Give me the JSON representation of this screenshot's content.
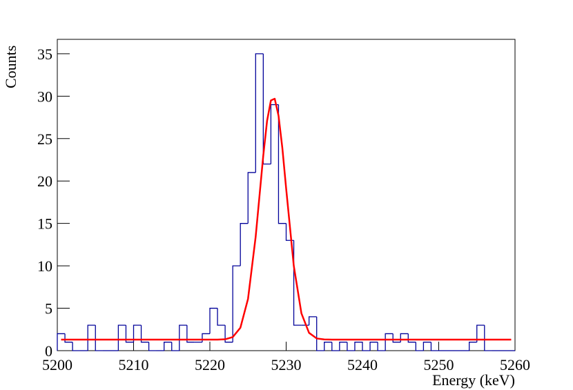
{
  "chart_data": {
    "type": "histogram",
    "xlabel": "Energy (keV)",
    "ylabel": "Counts",
    "bins": [
      5200,
      5201,
      5202,
      5203,
      5204,
      5205,
      5206,
      5207,
      5208,
      5209,
      5210,
      5211,
      5212,
      5213,
      5214,
      5215,
      5216,
      5217,
      5218,
      5219,
      5220,
      5221,
      5222,
      5223,
      5224,
      5225,
      5226,
      5227,
      5228,
      5229,
      5230,
      5231,
      5232,
      5233,
      5234,
      5235,
      5236,
      5237,
      5238,
      5239,
      5240,
      5241,
      5242,
      5243,
      5244,
      5245,
      5246,
      5247,
      5248,
      5249,
      5250,
      5251,
      5252,
      5253,
      5254,
      5255,
      5256,
      5257,
      5258,
      5259,
      5260
    ],
    "values": [
      2,
      1,
      0,
      0,
      3,
      0,
      0,
      0,
      3,
      1,
      3,
      1,
      0,
      0,
      1,
      0,
      3,
      1,
      1,
      2,
      5,
      3,
      1,
      10,
      15,
      21,
      35,
      22,
      29,
      15,
      13,
      3,
      3,
      4,
      0,
      1,
      0,
      1,
      0,
      1,
      0,
      1,
      0,
      2,
      1,
      2,
      1,
      0,
      1,
      0,
      0,
      0,
      0,
      0,
      1,
      3,
      0,
      0,
      0,
      0
    ],
    "color": "#000099",
    "fit": {
      "color": "#ff0000",
      "x": [
        5200.5,
        5210,
        5218,
        5221,
        5222,
        5223,
        5224,
        5225,
        5226,
        5227,
        5227.5,
        5228,
        5228.5,
        5229,
        5229.5,
        5230,
        5231,
        5232,
        5233,
        5234,
        5235,
        5236,
        5240,
        5250,
        5259.5
      ],
      "values": [
        1.3,
        1.3,
        1.3,
        1.3,
        1.34,
        1.6,
        2.7,
        6.1,
        13.4,
        23.0,
        27.1,
        29.5,
        29.7,
        27.7,
        23.9,
        19.1,
        10.0,
        4.4,
        2.1,
        1.44,
        1.32,
        1.3,
        1.3,
        1.3,
        1.3
      ]
    },
    "xlim": [
      5200,
      5260
    ],
    "xticks": [
      5200,
      5210,
      5220,
      5230,
      5240,
      5250,
      5260
    ],
    "ylim": [
      0,
      36.7
    ],
    "yticks": [
      0,
      5,
      10,
      15,
      20,
      25,
      30,
      35
    ]
  }
}
